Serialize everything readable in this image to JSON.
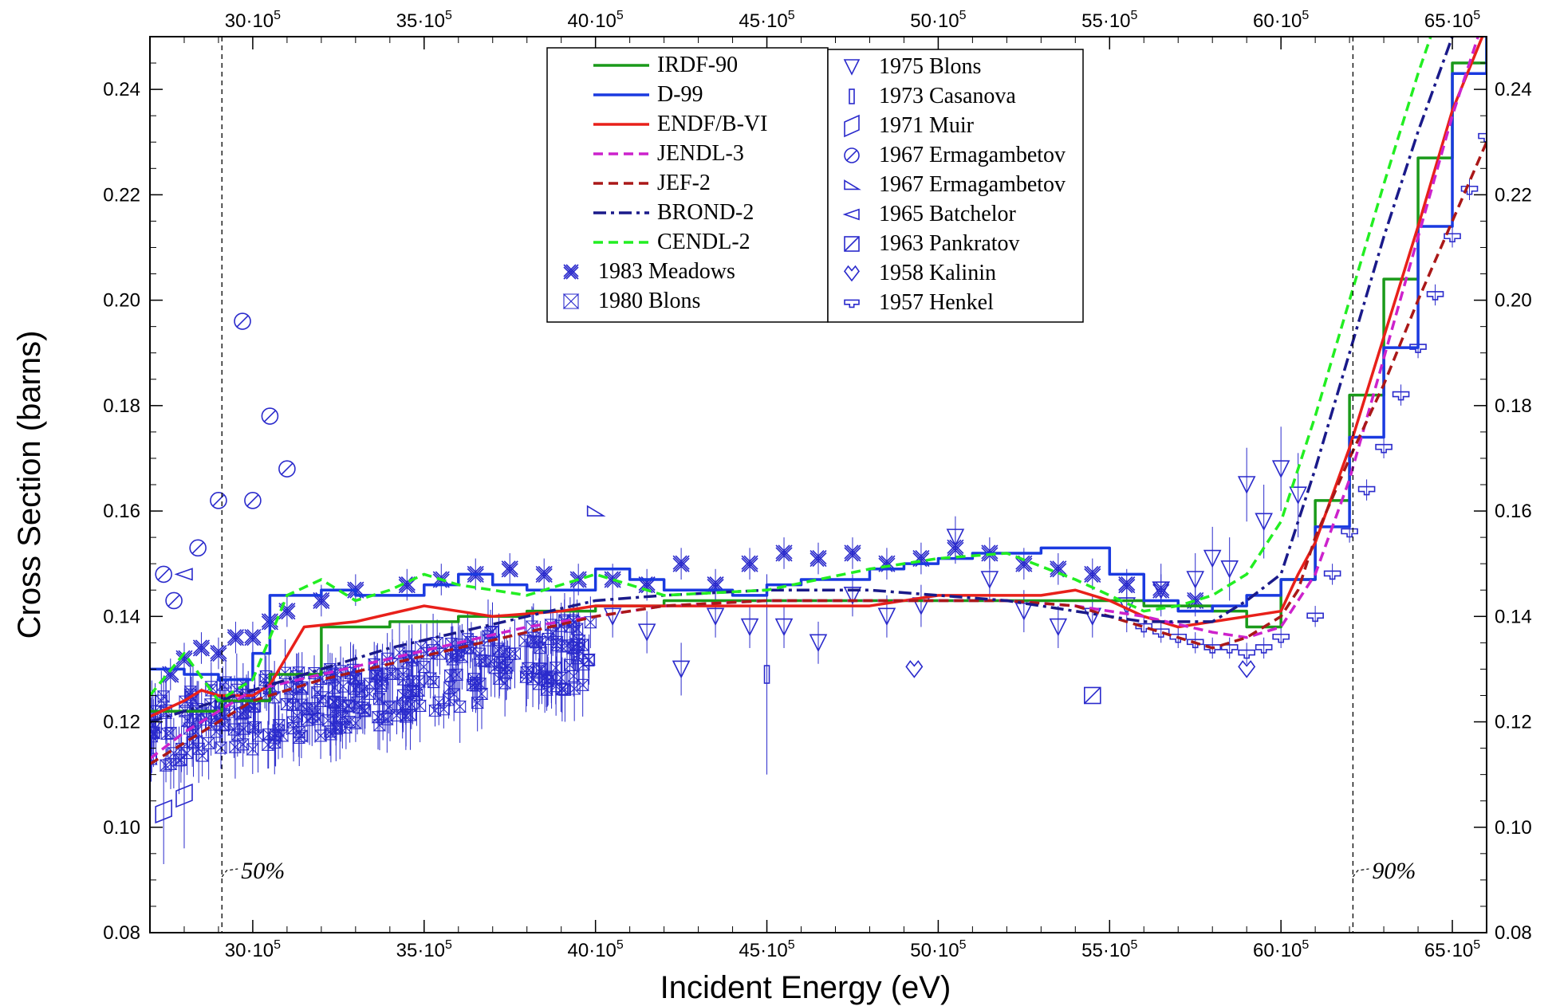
{
  "chart_data": {
    "type": "line",
    "xlabel": "Incident Energy  (eV)",
    "ylabel": "Cross Section  (barns)",
    "xlim": [
      2700000,
      6600000
    ],
    "ylim": [
      0.08,
      0.25
    ],
    "x_ticks": [
      {
        "value": 3000000,
        "label": "30·10",
        "exp": "5"
      },
      {
        "value": 3500000,
        "label": "35·10",
        "exp": "5"
      },
      {
        "value": 4000000,
        "label": "40·10",
        "exp": "5"
      },
      {
        "value": 4500000,
        "label": "45·10",
        "exp": "5"
      },
      {
        "value": 5000000,
        "label": "50·10",
        "exp": "5"
      },
      {
        "value": 5500000,
        "label": "55·10",
        "exp": "5"
      },
      {
        "value": 6000000,
        "label": "60·10",
        "exp": "5"
      },
      {
        "value": 6500000,
        "label": "65·10",
        "exp": "5"
      }
    ],
    "y_ticks": [
      {
        "value": 0.08,
        "label": "0.08"
      },
      {
        "value": 0.1,
        "label": "0.10"
      },
      {
        "value": 0.12,
        "label": "0.12"
      },
      {
        "value": 0.14,
        "label": "0.14"
      },
      {
        "value": 0.16,
        "label": "0.16"
      },
      {
        "value": 0.18,
        "label": "0.18"
      },
      {
        "value": 0.2,
        "label": "0.20"
      },
      {
        "value": 0.22,
        "label": "0.22"
      },
      {
        "value": 0.24,
        "label": "0.24"
      }
    ],
    "vlines": [
      {
        "x": 2910000,
        "label": "50%"
      },
      {
        "x": 6210000,
        "label": "90%"
      }
    ],
    "line_series": [
      {
        "name": "IRDF-90",
        "color": "#1a9a1a",
        "style": "step",
        "x": [
          2700000,
          2800000,
          2910000,
          3050000,
          3200000,
          3400000,
          3600000,
          3800000,
          4000000,
          4200000,
          4500000,
          4800000,
          5000000,
          5200000,
          5400000,
          5600000,
          5800000,
          5900000,
          6000000,
          6100000,
          6200000,
          6300000,
          6400000,
          6500000,
          6600000
        ],
        "y": [
          0.122,
          0.122,
          0.124,
          0.129,
          0.138,
          0.139,
          0.14,
          0.141,
          0.142,
          0.143,
          0.143,
          0.143,
          0.143,
          0.143,
          0.143,
          0.142,
          0.141,
          0.138,
          0.147,
          0.162,
          0.182,
          0.204,
          0.227,
          0.245,
          0.255
        ]
      },
      {
        "name": "D-99",
        "color": "#1a3ae0",
        "style": "step",
        "x": [
          2700000,
          2800000,
          2900000,
          3000000,
          3050000,
          3200000,
          3300000,
          3400000,
          3500000,
          3600000,
          3700000,
          3800000,
          4000000,
          4100000,
          4200000,
          4400000,
          4500000,
          4600000,
          4800000,
          4900000,
          5000000,
          5100000,
          5300000,
          5500000,
          5600000,
          5700000,
          5800000,
          5900000,
          6000000,
          6100000,
          6200000,
          6300000,
          6400000,
          6500000,
          6600000
        ],
        "y": [
          0.13,
          0.129,
          0.128,
          0.133,
          0.144,
          0.145,
          0.144,
          0.144,
          0.146,
          0.148,
          0.146,
          0.145,
          0.149,
          0.147,
          0.145,
          0.144,
          0.146,
          0.147,
          0.149,
          0.15,
          0.151,
          0.152,
          0.153,
          0.148,
          0.143,
          0.141,
          0.142,
          0.144,
          0.147,
          0.157,
          0.174,
          0.191,
          0.214,
          0.243,
          0.26
        ]
      },
      {
        "name": "ENDF/B-VI",
        "color": "#e8201a",
        "style": "line",
        "x": [
          2700000,
          2800000,
          2850000,
          2900000,
          3000000,
          3050000,
          3150000,
          3300000,
          3500000,
          3700000,
          3900000,
          4000000,
          4200000,
          4500000,
          4800000,
          5000000,
          5200000,
          5300000,
          5400000,
          5500000,
          5600000,
          5700000,
          5800000,
          5900000,
          6000000,
          6050000,
          6100000,
          6200000,
          6300000,
          6400000,
          6500000,
          6600000
        ],
        "y": [
          0.121,
          0.124,
          0.126,
          0.125,
          0.125,
          0.127,
          0.138,
          0.139,
          0.142,
          0.14,
          0.141,
          0.142,
          0.142,
          0.142,
          0.142,
          0.144,
          0.144,
          0.144,
          0.145,
          0.143,
          0.14,
          0.138,
          0.139,
          0.14,
          0.141,
          0.148,
          0.154,
          0.172,
          0.193,
          0.214,
          0.236,
          0.252
        ]
      },
      {
        "name": "JENDL-3",
        "color": "#cc22cc",
        "style": "dash",
        "x": [
          2700000,
          2800000,
          2900000,
          3000000,
          3200000,
          3400000,
          3600000,
          3800000,
          4000000,
          4200000,
          4500000,
          4800000,
          5000000,
          5200000,
          5400000,
          5600000,
          5800000,
          5900000,
          6000000,
          6100000,
          6200000,
          6300000,
          6400000,
          6500000,
          6600000
        ],
        "y": [
          0.113,
          0.118,
          0.122,
          0.126,
          0.129,
          0.132,
          0.135,
          0.138,
          0.14,
          0.142,
          0.143,
          0.143,
          0.143,
          0.143,
          0.142,
          0.14,
          0.137,
          0.136,
          0.138,
          0.148,
          0.166,
          0.189,
          0.212,
          0.235,
          0.255
        ]
      },
      {
        "name": "JEF-2",
        "color": "#aa1818",
        "style": "dash",
        "x": [
          2700000,
          2800000,
          2900000,
          3000000,
          3200000,
          3400000,
          3600000,
          3800000,
          4000000,
          4200000,
          4500000,
          4800000,
          5000000,
          5200000,
          5400000,
          5600000,
          5800000,
          5900000,
          6000000,
          6050000,
          6100000,
          6200000,
          6300000,
          6400000,
          6500000,
          6600000
        ],
        "y": [
          0.112,
          0.116,
          0.12,
          0.124,
          0.128,
          0.131,
          0.134,
          0.137,
          0.14,
          0.142,
          0.143,
          0.143,
          0.143,
          0.143,
          0.142,
          0.138,
          0.134,
          0.136,
          0.14,
          0.145,
          0.155,
          0.17,
          0.184,
          0.2,
          0.215,
          0.23
        ]
      },
      {
        "name": "BROND-2",
        "color": "#1a1a8a",
        "style": "dashdot",
        "x": [
          2700000,
          2900000,
          3000000,
          3200000,
          3400000,
          3600000,
          3800000,
          4000000,
          4200000,
          4500000,
          4800000,
          5000000,
          5200000,
          5400000,
          5600000,
          5800000,
          5900000,
          6000000,
          6100000,
          6200000,
          6300000,
          6400000,
          6500000,
          6600000
        ],
        "y": [
          0.12,
          0.124,
          0.126,
          0.13,
          0.134,
          0.137,
          0.14,
          0.143,
          0.144,
          0.145,
          0.145,
          0.144,
          0.143,
          0.141,
          0.139,
          0.139,
          0.143,
          0.148,
          0.168,
          0.19,
          0.212,
          0.232,
          0.25,
          0.262
        ]
      },
      {
        "name": "CENDL-2",
        "color": "#22ee22",
        "style": "dash",
        "x": [
          2700000,
          2800000,
          2900000,
          3000000,
          3100000,
          3200000,
          3300000,
          3400000,
          3500000,
          3600000,
          3800000,
          4000000,
          4200000,
          4500000,
          4800000,
          5000000,
          5200000,
          5400000,
          5600000,
          5700000,
          5800000,
          5900000,
          6000000,
          6100000,
          6200000,
          6300000,
          6400000,
          6500000,
          6600000
        ],
        "y": [
          0.125,
          0.133,
          0.124,
          0.128,
          0.144,
          0.147,
          0.143,
          0.145,
          0.148,
          0.146,
          0.144,
          0.148,
          0.144,
          0.145,
          0.149,
          0.151,
          0.152,
          0.147,
          0.141,
          0.142,
          0.144,
          0.148,
          0.158,
          0.178,
          0.2,
          0.222,
          0.243,
          0.262,
          0.275
        ]
      }
    ],
    "marker_series": [
      {
        "name": "1983 Meadows",
        "marker": "meadows",
        "x": [
          2760000,
          2800000,
          2850000,
          2900000,
          2950000,
          3000000,
          3050000,
          3100000,
          3200000,
          3300000,
          3450000,
          3550000,
          3650000,
          3750000,
          3850000,
          3950000,
          4050000,
          4150000,
          4250000,
          4350000,
          4450000,
          4550000,
          4650000,
          4750000,
          4850000,
          4950000,
          5050000,
          5150000,
          5250000,
          5350000,
          5450000,
          5550000,
          5650000,
          5750000
        ],
        "y": [
          0.129,
          0.132,
          0.134,
          0.133,
          0.136,
          0.136,
          0.139,
          0.141,
          0.143,
          0.145,
          0.146,
          0.147,
          0.148,
          0.149,
          0.148,
          0.147,
          0.147,
          0.146,
          0.15,
          0.146,
          0.15,
          0.152,
          0.151,
          0.152,
          0.15,
          0.151,
          0.153,
          0.152,
          0.15,
          0.149,
          0.148,
          0.146,
          0.145,
          0.143
        ],
        "err": [
          0.003,
          0.003,
          0.003,
          0.003,
          0.003,
          0.003,
          0.003,
          0.003,
          0.003,
          0.003,
          0.003,
          0.003,
          0.003,
          0.003,
          0.003,
          0.003,
          0.003,
          0.003,
          0.003,
          0.003,
          0.003,
          0.003,
          0.003,
          0.003,
          0.003,
          0.003,
          0.003,
          0.003,
          0.003,
          0.003,
          0.003,
          0.003,
          0.003,
          0.003
        ]
      },
      {
        "name": "1980 Blons",
        "marker": "bowtie",
        "dense": true,
        "x_range": [
          2700000,
          4000000
        ],
        "count": 320,
        "trend": [
          0.118,
          0.134
        ],
        "spread": 0.007
      },
      {
        "name": "1975 Blons",
        "marker": "tridown",
        "x": [
          4050000,
          4150000,
          4250000,
          4350000,
          4450000,
          4550000,
          4650000,
          4750000,
          4850000,
          4950000,
          5050000,
          5150000,
          5250000,
          5350000,
          5450000,
          5550000,
          5650000,
          5750000,
          5800000,
          5850000,
          5900000,
          5950000,
          6000000,
          6050000
        ],
        "y": [
          0.14,
          0.137,
          0.13,
          0.14,
          0.138,
          0.138,
          0.135,
          0.144,
          0.14,
          0.142,
          0.155,
          0.147,
          0.141,
          0.138,
          0.14,
          0.142,
          0.145,
          0.147,
          0.151,
          0.149,
          0.165,
          0.158,
          0.168,
          0.163
        ],
        "err": [
          0.004,
          0.004,
          0.005,
          0.004,
          0.004,
          0.004,
          0.004,
          0.004,
          0.004,
          0.004,
          0.004,
          0.004,
          0.004,
          0.004,
          0.004,
          0.005,
          0.005,
          0.005,
          0.006,
          0.006,
          0.007,
          0.007,
          0.008,
          0.008
        ]
      },
      {
        "name": "1973 Casanova",
        "marker": "rect",
        "x": [
          4500000
        ],
        "y": [
          0.129
        ],
        "err": [
          0.019
        ]
      },
      {
        "name": "1971 Muir",
        "marker": "para",
        "x": [
          2740000,
          2800000
        ],
        "y": [
          0.103,
          0.106
        ],
        "err": [
          0.01,
          0.01
        ]
      },
      {
        "name": "1967 Ermagambetov",
        "marker": "circslash",
        "x": [
          2740000,
          2770000,
          2840000,
          2900000,
          2970000,
          3000000,
          3050000,
          3100000
        ],
        "y": [
          0.148,
          0.143,
          0.153,
          0.162,
          0.196,
          0.162,
          0.178,
          0.168
        ],
        "err": [
          0,
          0,
          0,
          0,
          0,
          0,
          0,
          0
        ]
      },
      {
        "name": "1967 Ermagambetov",
        "marker": "halftri",
        "x": [
          4000000
        ],
        "y": [
          0.16
        ],
        "err": [
          0
        ]
      },
      {
        "name": "1965 Batchelor",
        "marker": "lefttri",
        "x": [
          2800000
        ],
        "y": [
          0.148
        ],
        "err": [
          0
        ]
      },
      {
        "name": "1963 Pankratov",
        "marker": "boxslash",
        "x": [
          5450000
        ],
        "y": [
          0.125
        ],
        "err": [
          0
        ]
      },
      {
        "name": "1958 Kalinin",
        "marker": "diamond",
        "x": [
          4930000,
          5900000
        ],
        "y": [
          0.13,
          0.13
        ],
        "err": [
          0,
          0
        ]
      },
      {
        "name": "1957 Henkel",
        "marker": "henkel",
        "x": [
          5600000,
          5650000,
          5700000,
          5750000,
          5800000,
          5850000,
          5900000,
          5950000,
          6000000,
          6100000,
          6150000,
          6200000,
          6250000,
          6300000,
          6350000,
          6400000,
          6450000,
          6500000,
          6550000,
          6600000
        ],
        "y": [
          0.138,
          0.137,
          0.136,
          0.135,
          0.134,
          0.134,
          0.133,
          0.134,
          0.136,
          0.14,
          0.148,
          0.156,
          0.164,
          0.172,
          0.182,
          0.191,
          0.201,
          0.212,
          0.221,
          0.231
        ],
        "err": [
          0.002,
          0.002,
          0.002,
          0.002,
          0.002,
          0.002,
          0.002,
          0.002,
          0.002,
          0.002,
          0.002,
          0.002,
          0.002,
          0.002,
          0.002,
          0.002,
          0.002,
          0.002,
          0.002,
          0.002
        ]
      }
    ],
    "legend": [
      {
        "placement": "top-center",
        "entries": [
          "IRDF-90",
          "D-99",
          "ENDF/B-VI",
          "JENDL-3",
          "JEF-2",
          "BROND-2",
          "CENDL-2",
          "1983 Meadows",
          "1980 Blons"
        ]
      },
      {
        "placement": "top-center-right",
        "entries": [
          "1975 Blons",
          "1973 Casanova",
          "1971 Muir",
          "1967 Ermagambetov",
          "1967 Ermagambetov",
          "1965 Batchelor",
          "1963 Pankratov",
          "1958 Kalinin",
          "1957 Henkel"
        ]
      }
    ],
    "marker_color": "#2a2acc",
    "grid": false
  }
}
